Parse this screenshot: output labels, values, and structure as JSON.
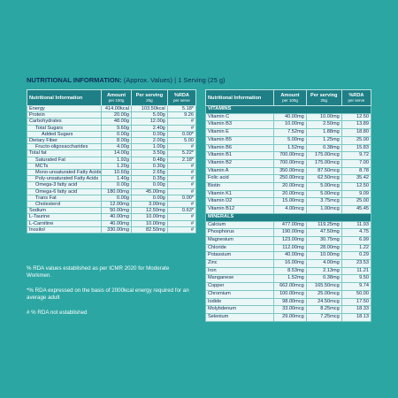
{
  "title": {
    "bold": "NUTRITIONAL INFORMATION:",
    "rest": "(Approx. Values) | 1 Serving (25 g)"
  },
  "header": [
    {
      "main": "Nutritional Information"
    },
    {
      "main": "Amount",
      "sub": "per 100g"
    },
    {
      "main": "Per serving",
      "sub": "25g"
    },
    {
      "main": "%RDA",
      "sub": "per serve"
    }
  ],
  "left_table": {
    "rows": [
      {
        "level": 0,
        "cells": [
          "Energy",
          "414.00kcal",
          "103.50kcal",
          "5.18*"
        ]
      },
      {
        "level": 0,
        "cells": [
          "Protein",
          "20.00g",
          "5.00g",
          "9.26"
        ]
      },
      {
        "level": 0,
        "cells": [
          "Carbohydrates",
          "48.00g",
          "12.00g",
          "#"
        ]
      },
      {
        "level": 1,
        "cells": [
          "Total Sugars",
          "9.60g",
          "2.40g",
          "#"
        ]
      },
      {
        "level": 2,
        "cells": [
          "Added Sugars",
          "0.00g",
          "0.00g",
          "0.00*"
        ]
      },
      {
        "level": 0,
        "cells": [
          "Dietary Fiber",
          "8.00g",
          "2.00g",
          "5.00"
        ]
      },
      {
        "level": 1,
        "cells": [
          "Fructo-oligosaccharides",
          "4.00g",
          "1.00g",
          "#"
        ]
      },
      {
        "level": 0,
        "cells": [
          "Total fat",
          "14.00g",
          "3.50g",
          "5.22*"
        ]
      },
      {
        "level": 1,
        "cells": [
          "Saturated Fat",
          "1.92g",
          "0.48g",
          "2.18*"
        ]
      },
      {
        "level": 1,
        "cells": [
          "MCTs",
          "1.20g",
          "0.30g",
          "#"
        ]
      },
      {
        "level": 1,
        "cells": [
          "Mono-unsaturated Fatty Acids",
          "10.60g",
          "2.65g",
          "#"
        ]
      },
      {
        "level": 1,
        "cells": [
          "Poly-unsaturated Fatty Acids",
          "1.40g",
          "0.35g",
          "#"
        ]
      },
      {
        "level": 1,
        "cells": [
          "Omega-3 fatty acid",
          "0.00g",
          "0.00g",
          "#"
        ]
      },
      {
        "level": 1,
        "cells": [
          "Omega-6 fatty acid",
          "180.00mg",
          "45.00mg",
          "#"
        ]
      },
      {
        "level": 1,
        "cells": [
          "Trans Fat",
          "0.00g",
          "0.00g",
          "0.00*"
        ]
      },
      {
        "level": 1,
        "cells": [
          "Cholesterol",
          "12.00mg",
          "3.00mg",
          "#"
        ]
      },
      {
        "level": 0,
        "cells": [
          "Sodium",
          "50.00mg",
          "12.50mg",
          "0.63*"
        ]
      },
      {
        "level": 0,
        "cells": [
          "L-Taurine",
          "40.00mg",
          "10.00mg",
          "#"
        ]
      },
      {
        "level": 0,
        "cells": [
          "L-Carnitine",
          "40.00mg",
          "10.00mg",
          "#"
        ]
      },
      {
        "level": 0,
        "cells": [
          "Inositol",
          "330.00mg",
          "82.50mg",
          "#"
        ]
      }
    ]
  },
  "right_table": {
    "sections": [
      {
        "title": "VITAMINS",
        "rows": [
          [
            "Vitamin C",
            "40.00mg",
            "10.00mg",
            "12.50"
          ],
          [
            "Vitamin B3",
            "10.00mg",
            "2.50mg",
            "13.89"
          ],
          [
            "Vitamin E",
            "7.52mg",
            "1.88mg",
            "18.80"
          ],
          [
            "Vitamin B5",
            "5.00mg",
            "1.25mg",
            "25.00"
          ],
          [
            "Vitamin B6",
            "1.52mg",
            "0.38mg",
            "15.83"
          ],
          [
            "Vitamin B1",
            "700.00mcg",
            "175.00mcg",
            "9.72"
          ],
          [
            "Vitamin B2",
            "700.00mcg",
            "175.00mcg",
            "7.00"
          ],
          [
            "Vitamin A",
            "350.00mcg",
            "87.50mcg",
            "8.78"
          ],
          [
            "Folic acid",
            "250.00mcg",
            "62.50mcg",
            "35.42"
          ],
          [
            "Biotin",
            "20.00mcg",
            "5.00mcg",
            "12.50"
          ],
          [
            "Vitamin K1",
            "20.00mcg",
            "5.00mcg",
            "9.09"
          ],
          [
            "Vitamin D2",
            "15.00mcg",
            "3.75mcg",
            "25.00"
          ],
          [
            "Vitamin B12",
            "4.00mcg",
            "1.00mcg",
            "45.45"
          ]
        ]
      },
      {
        "title": "MINERALS",
        "rows": [
          [
            "Calcium",
            "477.00mg",
            "119.25mg",
            "11.93"
          ],
          [
            "Phosphorus",
            "190.00mg",
            "47.50mg",
            "4.75"
          ],
          [
            "Magnesium",
            "123.00mg",
            "30.75mg",
            "6.99"
          ],
          [
            "Chloride",
            "112.00mg",
            "28.00mg",
            "1.22"
          ],
          [
            "Potassium",
            "40.00mg",
            "10.00mg",
            "0.29"
          ],
          [
            "Zinc",
            "16.00mg",
            "4.00mg",
            "23.53"
          ],
          [
            "Iron",
            "8.53mg",
            "2.13mg",
            "11.21"
          ],
          [
            "Manganese",
            "1.52mg",
            "0.38mg",
            "9.50"
          ],
          [
            "Copper",
            "662.00mcg",
            "165.50mcg",
            "9.74"
          ],
          [
            "Chromium",
            "100.00mcg",
            "25.00mcg",
            "50.00"
          ],
          [
            "Iodide",
            "98.00mcg",
            "24.50mcg",
            "17.50"
          ],
          [
            "Molybdenum",
            "33.00mcg",
            "8.25mcg",
            "18.33"
          ],
          [
            "Selenium",
            "29.00mcg",
            "7.25mcg",
            "18.13"
          ]
        ]
      }
    ]
  },
  "footnotes": [
    "% RDA values established as per ICMR 2020 for Moderate Workmen.",
    "*% RDA expressed on the basis of 2000kcal energy required for an average adult",
    "# % RDA not established"
  ]
}
